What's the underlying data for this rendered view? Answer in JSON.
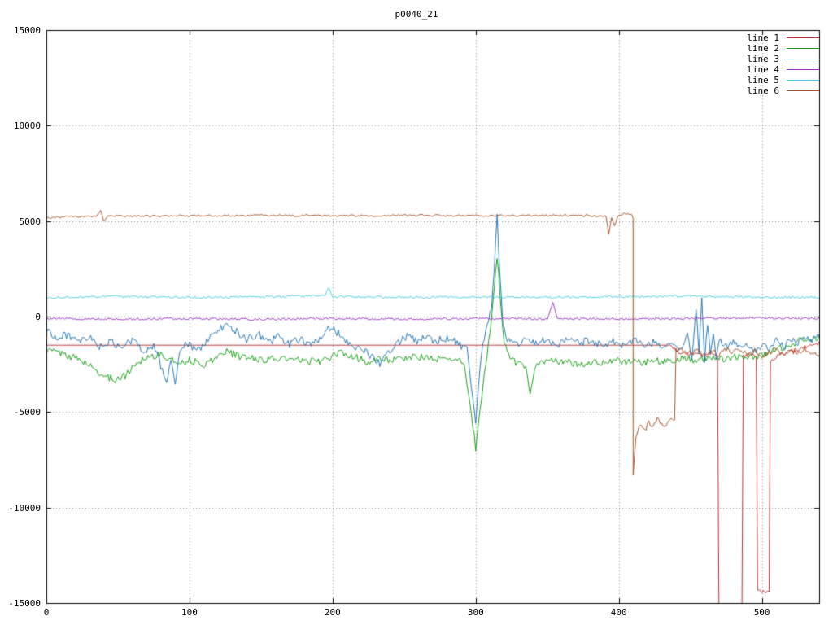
{
  "chart_data": {
    "type": "line",
    "title": "p0040_21",
    "xlabel": "",
    "ylabel": "",
    "xlim": [
      0,
      540
    ],
    "ylim": [
      -15000,
      15000
    ],
    "xticks": [
      0,
      100,
      200,
      300,
      400,
      500
    ],
    "yticks": [
      -15000,
      -10000,
      -5000,
      0,
      5000,
      10000,
      15000
    ],
    "grid": true,
    "grid_color": "#8a8a8a",
    "border_color": "#000000",
    "legend_position": "top-right",
    "series": [
      {
        "name": "line 1",
        "color": "#c03030",
        "noise_zones": [
          [
            0,
            436,
            0
          ],
          [
            436,
            541,
            110
          ]
        ],
        "points": [
          [
            0,
            -1500
          ],
          [
            436,
            -1500
          ],
          [
            442,
            -1950
          ],
          [
            450,
            -1850
          ],
          [
            458,
            -2050
          ],
          [
            464,
            -1900
          ],
          [
            469,
            -2000
          ],
          [
            470,
            -16000
          ],
          [
            486,
            -16000
          ],
          [
            487,
            -2100
          ],
          [
            490,
            -1950
          ],
          [
            496,
            -2050
          ],
          [
            497,
            -14400
          ],
          [
            505,
            -14400
          ],
          [
            506,
            -2300
          ],
          [
            512,
            -2000
          ],
          [
            520,
            -1850
          ],
          [
            530,
            -1600
          ],
          [
            540,
            -1400
          ]
        ]
      },
      {
        "name": "line 2",
        "color": "#1aa11a",
        "noise_zones": [
          [
            0,
            541,
            190
          ]
        ],
        "points": [
          [
            0,
            -1750
          ],
          [
            10,
            -1900
          ],
          [
            25,
            -2300
          ],
          [
            40,
            -3100
          ],
          [
            48,
            -3300
          ],
          [
            55,
            -3100
          ],
          [
            62,
            -2500
          ],
          [
            70,
            -2100
          ],
          [
            80,
            -2000
          ],
          [
            90,
            -2400
          ],
          [
            100,
            -2300
          ],
          [
            110,
            -2500
          ],
          [
            118,
            -2200
          ],
          [
            125,
            -1800
          ],
          [
            135,
            -2100
          ],
          [
            150,
            -2250
          ],
          [
            165,
            -2200
          ],
          [
            180,
            -2350
          ],
          [
            195,
            -2300
          ],
          [
            205,
            -1900
          ],
          [
            215,
            -2100
          ],
          [
            225,
            -2400
          ],
          [
            235,
            -2200
          ],
          [
            245,
            -2300
          ],
          [
            255,
            -2100
          ],
          [
            265,
            -2150
          ],
          [
            275,
            -2250
          ],
          [
            285,
            -2200
          ],
          [
            292,
            -2400
          ],
          [
            297,
            -5200
          ],
          [
            300,
            -6900
          ],
          [
            303,
            -5000
          ],
          [
            307,
            -2500
          ],
          [
            310,
            -800
          ],
          [
            313,
            1500
          ],
          [
            315,
            3200
          ],
          [
            317,
            1200
          ],
          [
            320,
            -1500
          ],
          [
            325,
            -2200
          ],
          [
            330,
            -2500
          ],
          [
            335,
            -2600
          ],
          [
            338,
            -3900
          ],
          [
            341,
            -2800
          ],
          [
            345,
            -2400
          ],
          [
            355,
            -2300
          ],
          [
            365,
            -2400
          ],
          [
            375,
            -2500
          ],
          [
            385,
            -2400
          ],
          [
            395,
            -2300
          ],
          [
            405,
            -2350
          ],
          [
            415,
            -2400
          ],
          [
            425,
            -2300
          ],
          [
            435,
            -2350
          ],
          [
            445,
            -2200
          ],
          [
            455,
            -2300
          ],
          [
            465,
            -2100
          ],
          [
            475,
            -2200
          ],
          [
            485,
            -2050
          ],
          [
            495,
            -2100
          ],
          [
            505,
            -1900
          ],
          [
            515,
            -1600
          ],
          [
            525,
            -1300
          ],
          [
            535,
            -1150
          ],
          [
            540,
            -1100
          ]
        ]
      },
      {
        "name": "line 3",
        "color": "#2878b4",
        "noise_zones": [
          [
            0,
            541,
            210
          ]
        ],
        "points": [
          [
            0,
            -600
          ],
          [
            8,
            -1200
          ],
          [
            15,
            -900
          ],
          [
            22,
            -1400
          ],
          [
            30,
            -1100
          ],
          [
            38,
            -1600
          ],
          [
            45,
            -1300
          ],
          [
            52,
            -1700
          ],
          [
            60,
            -1200
          ],
          [
            68,
            -1800
          ],
          [
            75,
            -1500
          ],
          [
            80,
            -2600
          ],
          [
            84,
            -3400
          ],
          [
            87,
            -2200
          ],
          [
            90,
            -3500
          ],
          [
            93,
            -2000
          ],
          [
            98,
            -1400
          ],
          [
            105,
            -1800
          ],
          [
            112,
            -1300
          ],
          [
            120,
            -700
          ],
          [
            127,
            -400
          ],
          [
            133,
            -800
          ],
          [
            140,
            -1200
          ],
          [
            148,
            -900
          ],
          [
            155,
            -1400
          ],
          [
            162,
            -1000
          ],
          [
            170,
            -1500
          ],
          [
            178,
            -1100
          ],
          [
            185,
            -1600
          ],
          [
            192,
            -1000
          ],
          [
            198,
            -600
          ],
          [
            205,
            -900
          ],
          [
            212,
            -1400
          ],
          [
            220,
            -1700
          ],
          [
            228,
            -2100
          ],
          [
            233,
            -2500
          ],
          [
            238,
            -1900
          ],
          [
            245,
            -1400
          ],
          [
            252,
            -1000
          ],
          [
            258,
            -1300
          ],
          [
            265,
            -1000
          ],
          [
            272,
            -1300
          ],
          [
            280,
            -1100
          ],
          [
            288,
            -1400
          ],
          [
            294,
            -1800
          ],
          [
            298,
            -4500
          ],
          [
            300,
            -5600
          ],
          [
            302,
            -3500
          ],
          [
            305,
            -1500
          ],
          [
            308,
            -500
          ],
          [
            311,
            500
          ],
          [
            313,
            2500
          ],
          [
            315,
            5300
          ],
          [
            317,
            2000
          ],
          [
            319,
            -300
          ],
          [
            322,
            -1200
          ],
          [
            328,
            -1500
          ],
          [
            335,
            -1100
          ],
          [
            342,
            -1400
          ],
          [
            350,
            -1200
          ],
          [
            358,
            -1500
          ],
          [
            365,
            -1100
          ],
          [
            372,
            -1400
          ],
          [
            380,
            -1200
          ],
          [
            388,
            -1500
          ],
          [
            395,
            -1300
          ],
          [
            402,
            -1500
          ],
          [
            410,
            -1200
          ],
          [
            418,
            -1500
          ],
          [
            425,
            -1300
          ],
          [
            432,
            -1600
          ],
          [
            438,
            -1400
          ],
          [
            444,
            -1700
          ],
          [
            448,
            -1000
          ],
          [
            451,
            -2200
          ],
          [
            454,
            300
          ],
          [
            456,
            -1800
          ],
          [
            458,
            900
          ],
          [
            460,
            -2400
          ],
          [
            462,
            -300
          ],
          [
            464,
            -1900
          ],
          [
            466,
            -700
          ],
          [
            468,
            -2100
          ],
          [
            471,
            -1200
          ],
          [
            475,
            -1600
          ],
          [
            480,
            -1300
          ],
          [
            485,
            -1700
          ],
          [
            490,
            -1400
          ],
          [
            495,
            -1800
          ],
          [
            500,
            -1500
          ],
          [
            505,
            -1700
          ],
          [
            510,
            -1300
          ],
          [
            515,
            -1600
          ],
          [
            520,
            -1200
          ],
          [
            525,
            -1400
          ],
          [
            530,
            -1100
          ],
          [
            535,
            -1200
          ],
          [
            540,
            -1000
          ]
        ]
      },
      {
        "name": "line 4",
        "color": "#9a35c8",
        "noise_zones": [
          [
            0,
            541,
            55
          ]
        ],
        "points": [
          [
            0,
            -100
          ],
          [
            50,
            -150
          ],
          [
            100,
            -100
          ],
          [
            150,
            -150
          ],
          [
            200,
            -100
          ],
          [
            250,
            -150
          ],
          [
            300,
            -100
          ],
          [
            350,
            -120
          ],
          [
            354,
            700
          ],
          [
            357,
            -100
          ],
          [
            400,
            -120
          ],
          [
            450,
            -100
          ],
          [
            500,
            -80
          ],
          [
            540,
            -100
          ]
        ]
      },
      {
        "name": "line 5",
        "color": "#45cfe0",
        "noise_zones": [
          [
            0,
            541,
            60
          ]
        ],
        "points": [
          [
            0,
            1000
          ],
          [
            50,
            1050
          ],
          [
            100,
            1000
          ],
          [
            150,
            1020
          ],
          [
            195,
            1100
          ],
          [
            197,
            1500
          ],
          [
            200,
            1050
          ],
          [
            250,
            1000
          ],
          [
            300,
            1020
          ],
          [
            350,
            1000
          ],
          [
            400,
            1050
          ],
          [
            450,
            1080
          ],
          [
            500,
            1000
          ],
          [
            540,
            1000
          ]
        ]
      },
      {
        "name": "line 6",
        "color": "#a5542a",
        "noise_zones": [
          [
            0,
            409,
            55
          ],
          [
            409,
            440,
            140
          ],
          [
            440,
            541,
            130
          ]
        ],
        "points": [
          [
            0,
            5150
          ],
          [
            20,
            5250
          ],
          [
            35,
            5250
          ],
          [
            38,
            5600
          ],
          [
            40,
            5000
          ],
          [
            43,
            5300
          ],
          [
            60,
            5250
          ],
          [
            100,
            5280
          ],
          [
            150,
            5300
          ],
          [
            200,
            5280
          ],
          [
            250,
            5300
          ],
          [
            300,
            5280
          ],
          [
            350,
            5300
          ],
          [
            380,
            5280
          ],
          [
            391,
            5250
          ],
          [
            393,
            4300
          ],
          [
            395,
            5200
          ],
          [
            397,
            4700
          ],
          [
            399,
            5250
          ],
          [
            404,
            5400
          ],
          [
            408,
            5300
          ],
          [
            410,
            5250
          ],
          [
            410,
            -8200
          ],
          [
            412,
            -6200
          ],
          [
            415,
            -5700
          ],
          [
            418,
            -6000
          ],
          [
            421,
            -5500
          ],
          [
            424,
            -5800
          ],
          [
            427,
            -5400
          ],
          [
            430,
            -5600
          ],
          [
            433,
            -5700
          ],
          [
            436,
            -5400
          ],
          [
            439,
            -5500
          ],
          [
            440,
            -1700
          ],
          [
            445,
            -1800
          ],
          [
            450,
            -2000
          ],
          [
            455,
            -1700
          ],
          [
            460,
            -2100
          ],
          [
            465,
            -1800
          ],
          [
            470,
            -2000
          ],
          [
            475,
            -1700
          ],
          [
            480,
            -1900
          ],
          [
            485,
            -1700
          ],
          [
            490,
            -2000
          ],
          [
            495,
            -1800
          ],
          [
            500,
            -2100
          ],
          [
            505,
            -1900
          ],
          [
            510,
            -1700
          ],
          [
            515,
            -2000
          ],
          [
            520,
            -1800
          ],
          [
            525,
            -1900
          ],
          [
            530,
            -1700
          ],
          [
            535,
            -1900
          ],
          [
            540,
            -2000
          ]
        ]
      }
    ],
    "legend": [
      "line 1",
      "line 2",
      "line 3",
      "line 4",
      "line 5",
      "line 6"
    ]
  }
}
